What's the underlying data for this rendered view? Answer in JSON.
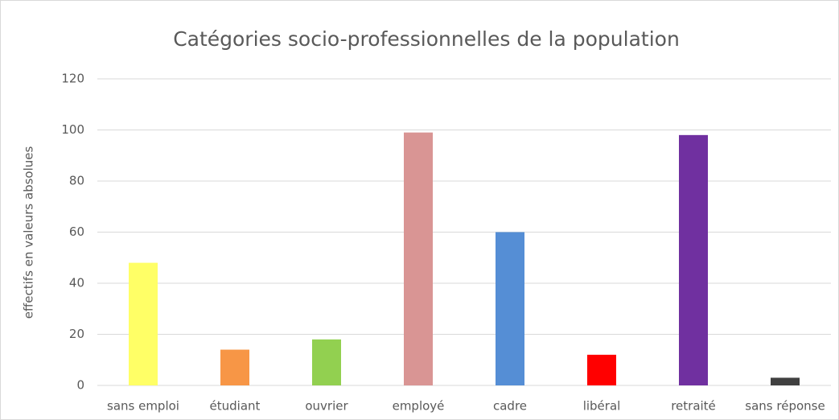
{
  "chart_data": {
    "type": "bar",
    "title": "Catégories socio-professionnelles  de la population",
    "ylabel": "effectifs en valeurs absolues",
    "categories": [
      "sans emploi",
      "étudiant",
      "ouvrier",
      "employé",
      "cadre",
      "libéral",
      "retraité",
      "sans réponse"
    ],
    "values": [
      48,
      14,
      18,
      99,
      60,
      12,
      98,
      3
    ],
    "colors": [
      "#ffff66",
      "#f79646",
      "#92d050",
      "#d99594",
      "#558ed5",
      "#ff0000",
      "#7030a0",
      "#404040"
    ],
    "ylim": [
      0,
      120
    ],
    "yticks": [
      0,
      20,
      40,
      60,
      80,
      100,
      120
    ],
    "grid": true
  }
}
